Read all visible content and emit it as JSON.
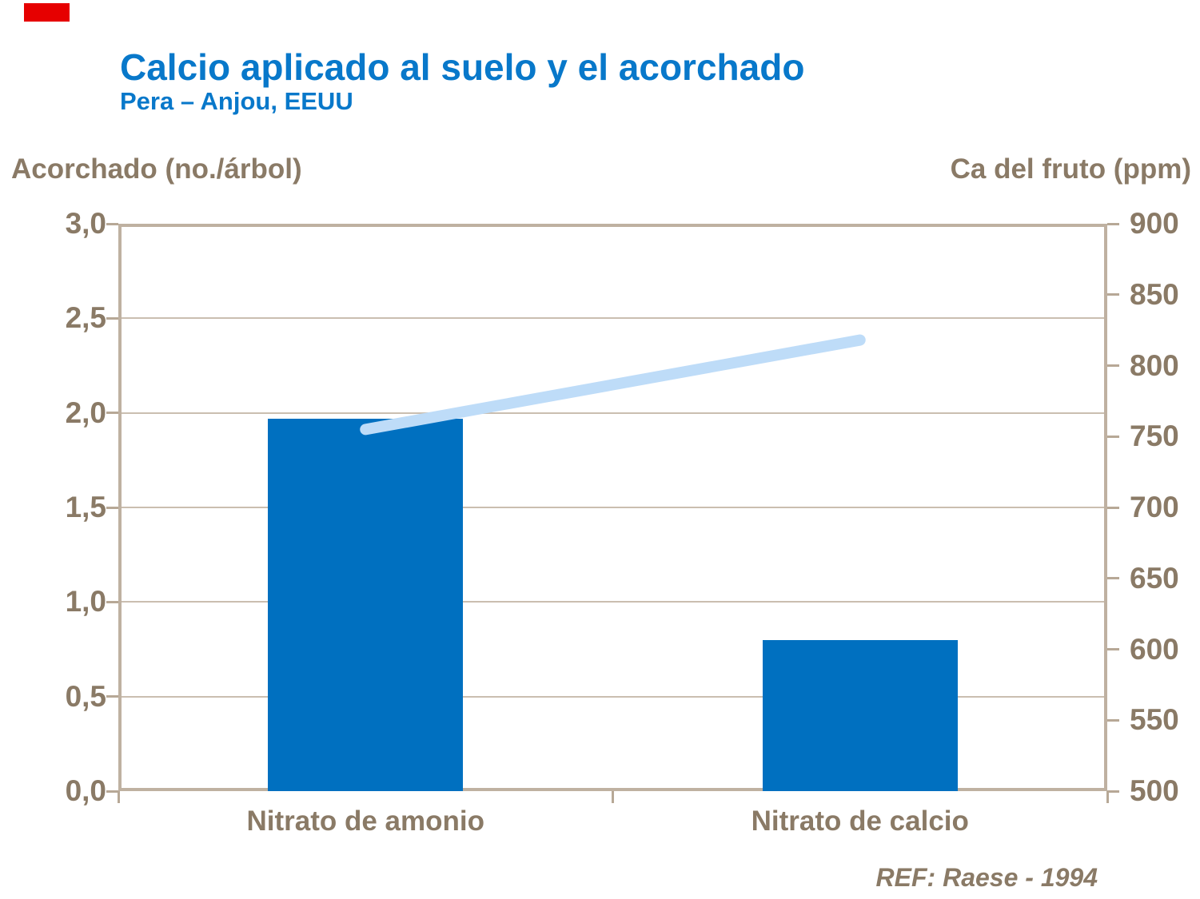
{
  "header": {
    "title": "Calcio aplicado al suelo y el acorchado",
    "subtitle": "Pera – Anjou, EEUU"
  },
  "footer": {
    "ref": "REF: Raese - 1994"
  },
  "decorations": {
    "red_block_color": "#e60000"
  },
  "colors": {
    "title_blue": "#0878ca",
    "bar_blue": "#0070c0",
    "line_light_blue": "#bedcf8",
    "axis_text_brown": "#8a7a66",
    "frame_taupe": "#bfb1a1",
    "gridline_taupe": "#cabeb0"
  },
  "chart_data": {
    "type": "bar",
    "title": "Calcio aplicado al suelo y el acorchado",
    "subtitle": "Pera – Anjou, EEUU",
    "categories": [
      "Nitrato de amonio",
      "Nitrato de calcio"
    ],
    "series": [
      {
        "name": "Acorchado (no./árbol)",
        "type": "bar",
        "axis": "left",
        "values": [
          1.97,
          0.8
        ],
        "color": "#0070c0"
      },
      {
        "name": "Ca del fruto (ppm)",
        "type": "line",
        "axis": "right",
        "values": [
          755,
          818
        ],
        "color": "#bedcf8"
      }
    ],
    "left_axis": {
      "label": "Acorchado (no./árbol)",
      "min": 0,
      "max": 3,
      "step": 0.5,
      "tick_labels": [
        "3,0",
        "2,5",
        "2,0",
        "1,5",
        "1,0",
        "0,5",
        "0,0"
      ]
    },
    "right_axis": {
      "label": "Ca del fruto (ppm)",
      "min": 500,
      "max": 900,
      "step": 50,
      "tick_labels": [
        "900",
        "850",
        "800",
        "750",
        "700",
        "650",
        "600",
        "550",
        "500"
      ]
    },
    "grid": "horizontal gridlines at left-axis 0.5 intervals",
    "legend": "none",
    "annotation": "REF: Raese - 1994"
  }
}
